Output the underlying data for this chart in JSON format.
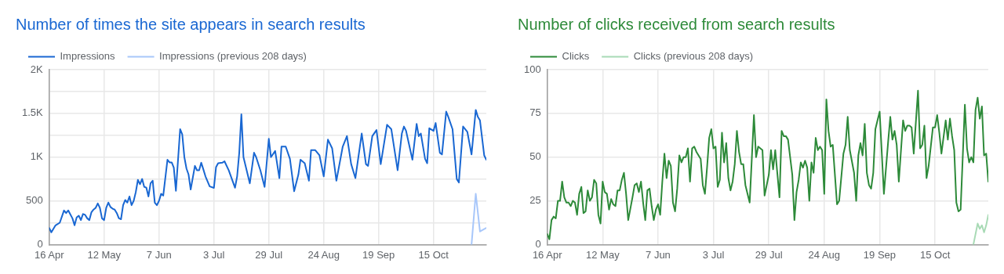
{
  "chart_data": [
    {
      "type": "line",
      "title": "Number of times the site appears in search results",
      "legend": "top left",
      "grid": true,
      "marker": "none",
      "line_style": "solid",
      "xlim": [
        "--04-16",
        "--11-09"
      ],
      "xticks": [
        {
          "value": "--04-16",
          "label": "16 Apr"
        },
        {
          "value": "--05-12",
          "label": "12 May"
        },
        {
          "value": "--06-07",
          "label": "7 Jun"
        },
        {
          "value": "--07-03",
          "label": "3 Jul"
        },
        {
          "value": "--07-29",
          "label": "29 Jul"
        },
        {
          "value": "--08-24",
          "label": "24 Aug"
        },
        {
          "value": "--09-19",
          "label": "19 Sep"
        },
        {
          "value": "--10-15",
          "label": "15 Oct"
        }
      ],
      "ylim": [
        0,
        2000
      ],
      "yticks": [
        0,
        {
          "value": 250,
          "label": null
        },
        500,
        {
          "value": 750,
          "label": null
        },
        {
          "value": 1000,
          "label": "1K"
        },
        {
          "value": 1250,
          "label": null
        },
        {
          "value": 1500,
          "label": "1.5K"
        },
        {
          "value": 1750,
          "label": null
        },
        {
          "value": 2000,
          "label": "2K"
        }
      ],
      "series": [
        {
          "name": "Impressions",
          "color": "#1967d2",
          "x": [
            "--04-16",
            "--04-17",
            "--04-19",
            "--04-21",
            "--04-23",
            "--04-24",
            "--04-25",
            "--04-27",
            "--04-28",
            "--04-29",
            "--04-30",
            "--05-01",
            "--05-02",
            "--05-03",
            "--05-04",
            "--05-05",
            "--05-06",
            "--05-07",
            "--05-08",
            "--05-09",
            "--05-10",
            "--05-11",
            "--05-12",
            "--05-13",
            "--05-14",
            "--05-15",
            "--05-16",
            "--05-17",
            "--05-18",
            "--05-19",
            "--05-20",
            "--05-21",
            "--05-22",
            "--05-23",
            "--05-24",
            "--05-25",
            "--05-26",
            "--05-27",
            "--05-28",
            "--05-29",
            "--05-30",
            "--05-31",
            "--06-01",
            "--06-02",
            "--06-03",
            "--06-04",
            "--06-05",
            "--06-06",
            "--06-07",
            "--06-08",
            "--06-09",
            "--06-11",
            "--06-12",
            "--06-13",
            "--06-14",
            "--06-15",
            "--06-17",
            "--06-18",
            "--06-19",
            "--06-20",
            "--06-21",
            "--06-22",
            "--06-24",
            "--06-25",
            "--06-26",
            "--06-27",
            "--06-28",
            "--06-29",
            "--07-01",
            "--07-03",
            "--07-04",
            "--07-05",
            "--07-07",
            "--07-08",
            "--07-10",
            "--07-12",
            "--07-13",
            "--07-14",
            "--07-15",
            "--07-16",
            "--07-17",
            "--07-20",
            "--07-22",
            "--07-23",
            "--07-25",
            "--07-27",
            "--07-29",
            "--07-30",
            "--08-01",
            "--08-03",
            "--08-04",
            "--08-06",
            "--08-08",
            "--08-10",
            "--08-12",
            "--08-13",
            "--08-15",
            "--08-17",
            "--08-18",
            "--08-20",
            "--08-22",
            "--08-24",
            "--08-26",
            "--08-28",
            "--08-30",
            "--09-02",
            "--09-04",
            "--09-06",
            "--09-08",
            "--09-11",
            "--09-13",
            "--09-14",
            "--09-16",
            "--09-18",
            "--09-20",
            "--09-23",
            "--09-25",
            "--09-28",
            "--09-30",
            "--10-01",
            "--10-02",
            "--10-05",
            "--10-07",
            "--10-08",
            "--10-09",
            "--10-11",
            "--10-12",
            "--10-13",
            "--10-15",
            "--10-16",
            "--10-18",
            "--10-19",
            "--10-21",
            "--10-22",
            "--10-24",
            "--10-26",
            "--10-27",
            "--10-29",
            "--10-31",
            "--11-02",
            "--11-04",
            "--11-05",
            "--11-06",
            "--11-08",
            "--11-09"
          ],
          "values": [
            190,
            140,
            220,
            250,
            390,
            360,
            390,
            300,
            220,
            310,
            330,
            280,
            350,
            340,
            300,
            280,
            370,
            400,
            420,
            470,
            420,
            300,
            280,
            420,
            480,
            430,
            410,
            400,
            360,
            300,
            290,
            450,
            510,
            480,
            550,
            450,
            500,
            600,
            740,
            690,
            750,
            660,
            650,
            550,
            700,
            730,
            480,
            450,
            500,
            580,
            560,
            970,
            940,
            940,
            880,
            615,
            1320,
            1260,
            1000,
            870,
            800,
            630,
            900,
            850,
            850,
            936,
            860,
            780,
            665,
            648,
            885,
            930,
            936,
            953,
            851,
            716,
            650,
            780,
            1050,
            1490,
            1000,
            700,
            1050,
            1000,
            850,
            660,
            1210,
            1000,
            1070,
            760,
            1120,
            1120,
            980,
            610,
            800,
            970,
            930,
            730,
            1080,
            1080,
            1020,
            780,
            1200,
            1100,
            730,
            1120,
            1240,
            920,
            760,
            1270,
            920,
            900,
            1240,
            1310,
            920,
            1370,
            1320,
            850,
            1270,
            1350,
            1300,
            970,
            1380,
            1240,
            1270,
            980,
            930,
            1330,
            1300,
            1390,
            1050,
            1030,
            1520,
            1460,
            1320,
            750,
            710,
            1350,
            1290,
            1030,
            1540,
            1460,
            1420,
            1020,
            970
          ]
        },
        {
          "name": "Impressions (previous 208 days)",
          "color": "#a8c7fa",
          "x": [
            "--11-02",
            "--11-04",
            "--11-06",
            "--11-09"
          ],
          "values": [
            0,
            580,
            150,
            190
          ]
        }
      ]
    },
    {
      "type": "line",
      "title": "Number of clicks received from search results",
      "legend": "top left",
      "grid": true,
      "marker": "none",
      "line_style": "solid",
      "xlim": [
        "--04-16",
        "--11-09"
      ],
      "xticks": [
        {
          "value": "--04-16",
          "label": "16 Apr"
        },
        {
          "value": "--05-12",
          "label": "12 May"
        },
        {
          "value": "--06-07",
          "label": "7 Jun"
        },
        {
          "value": "--07-03",
          "label": "3 Jul"
        },
        {
          "value": "--07-29",
          "label": "29 Jul"
        },
        {
          "value": "--08-24",
          "label": "24 Aug"
        },
        {
          "value": "--09-19",
          "label": "19 Sep"
        },
        {
          "value": "--10-15",
          "label": "15 Oct"
        }
      ],
      "ylim": [
        0,
        100
      ],
      "yticks": [
        0,
        25,
        50,
        75,
        100
      ],
      "series": [
        {
          "name": "Clicks",
          "color": "#2d8a39",
          "x": [
            "--04-16",
            "--04-17",
            "--04-18",
            "--04-19",
            "--04-20",
            "--04-21",
            "--04-22",
            "--04-23",
            "--04-24",
            "--04-25",
            "--04-26",
            "--04-27",
            "--04-28",
            "--04-29",
            "--04-30",
            "--05-01",
            "--05-02",
            "--05-03",
            "--05-04",
            "--05-05",
            "--05-06",
            "--05-07",
            "--05-08",
            "--05-09",
            "--05-10",
            "--05-11",
            "--05-12",
            "--05-13",
            "--05-14",
            "--05-15",
            "--05-16",
            "--05-17",
            "--05-18",
            "--05-19",
            "--05-20",
            "--05-21",
            "--05-22",
            "--05-23",
            "--05-24",
            "--05-26",
            "--05-27",
            "--05-28",
            "--05-29",
            "--05-30",
            "--05-31",
            "--06-01",
            "--06-02",
            "--06-03",
            "--06-04",
            "--06-05",
            "--06-06",
            "--06-07",
            "--06-08",
            "--06-09",
            "--06-10",
            "--06-11",
            "--06-12",
            "--06-13",
            "--06-14",
            "--06-15",
            "--06-16",
            "--06-17",
            "--06-18",
            "--06-19",
            "--06-20",
            "--06-21",
            "--06-22",
            "--06-23",
            "--06-24",
            "--06-25",
            "--06-26",
            "--06-27",
            "--06-28",
            "--06-29",
            "--06-30",
            "--07-01",
            "--07-02",
            "--07-03",
            "--07-04",
            "--07-05",
            "--07-06",
            "--07-07",
            "--07-08",
            "--07-09",
            "--07-10",
            "--07-11",
            "--07-12",
            "--07-13",
            "--07-14",
            "--07-15",
            "--07-16",
            "--07-17",
            "--07-18",
            "--07-20",
            "--07-22",
            "--07-23",
            "--07-24",
            "--07-26",
            "--07-27",
            "--07-29",
            "--07-30",
            "--07-31",
            "--08-01",
            "--08-03",
            "--08-04",
            "--08-05",
            "--08-06",
            "--08-07",
            "--08-09",
            "--08-10",
            "--08-11",
            "--08-12",
            "--08-13",
            "--08-14",
            "--08-15",
            "--08-16",
            "--08-17",
            "--08-18",
            "--08-19",
            "--08-20",
            "--08-21",
            "--08-22",
            "--08-23",
            "--08-24",
            "--08-25",
            "--08-26",
            "--08-27",
            "--08-28",
            "--08-30",
            "--08-31",
            "--09-02",
            "--09-03",
            "--09-04",
            "--09-05",
            "--09-07",
            "--09-08",
            "--09-09",
            "--09-10",
            "--09-11",
            "--09-12",
            "--09-13",
            "--09-14",
            "--09-15",
            "--09-16",
            "--09-17",
            "--09-18",
            "--09-19",
            "--09-21",
            "--09-23",
            "--09-24",
            "--09-25",
            "--09-26",
            "--09-27",
            "--09-28",
            "--09-30",
            "--10-01",
            "--10-02",
            "--10-03",
            "--10-04",
            "--10-05",
            "--10-07",
            "--10-08",
            "--10-09",
            "--10-10",
            "--10-11",
            "--10-12",
            "--10-14",
            "--10-15",
            "--10-16",
            "--10-17",
            "--10-18",
            "--10-20",
            "--10-21",
            "--10-22",
            "--10-23",
            "--10-24",
            "--10-25",
            "--10-26",
            "--10-27",
            "--10-29",
            "--10-30",
            "--10-31",
            "--11-01",
            "--11-02",
            "--11-03",
            "--11-04",
            "--11-05",
            "--11-06",
            "--11-07",
            "--11-08",
            "--11-09"
          ],
          "values": [
            6,
            3,
            14,
            16,
            15,
            25,
            25,
            36,
            27,
            24,
            24,
            22,
            25,
            24,
            17,
            29,
            33,
            18,
            19,
            31,
            25,
            27,
            37,
            35,
            17,
            12,
            36,
            30,
            29,
            20,
            26,
            23,
            22,
            31,
            31,
            37,
            41,
            29,
            14,
            27,
            34,
            35,
            30,
            36,
            24,
            14,
            31,
            32,
            22,
            14,
            20,
            23,
            17,
            36,
            52,
            38,
            48,
            45,
            24,
            19,
            32,
            51,
            47,
            50,
            50,
            55,
            36,
            55,
            56,
            53,
            51,
            49,
            34,
            29,
            44,
            61,
            66,
            55,
            56,
            33,
            37,
            64,
            47,
            58,
            38,
            31,
            36,
            46,
            65,
            53,
            46,
            46,
            34,
            24,
            74,
            50,
            56,
            54,
            28,
            40,
            54,
            43,
            54,
            27,
            65,
            62,
            62,
            60,
            40,
            14,
            30,
            37,
            47,
            44,
            48,
            44,
            25,
            47,
            41,
            61,
            54,
            56,
            54,
            29,
            83,
            65,
            56,
            57,
            23,
            25,
            52,
            57,
            73,
            54,
            41,
            25,
            51,
            58,
            51,
            69,
            41,
            34,
            32,
            41,
            66,
            71,
            76,
            29,
            59,
            73,
            60,
            65,
            57,
            36,
            71,
            65,
            68,
            68,
            67,
            52,
            88,
            55,
            57,
            68,
            38,
            45,
            67,
            67,
            74,
            64,
            52,
            71,
            60,
            72,
            62,
            54,
            24,
            19,
            20,
            80,
            55,
            47,
            50,
            47,
            77,
            84,
            72,
            79,
            51,
            52,
            36
          ]
        },
        {
          "name": "Clicks (previous 208 days)",
          "color": "#a8dab5",
          "x": [
            "--11-02",
            "--11-04",
            "--11-05",
            "--11-06",
            "--11-07",
            "--11-08",
            "--11-09"
          ],
          "values": [
            0,
            12,
            9,
            11,
            7,
            11,
            17
          ]
        }
      ]
    }
  ]
}
